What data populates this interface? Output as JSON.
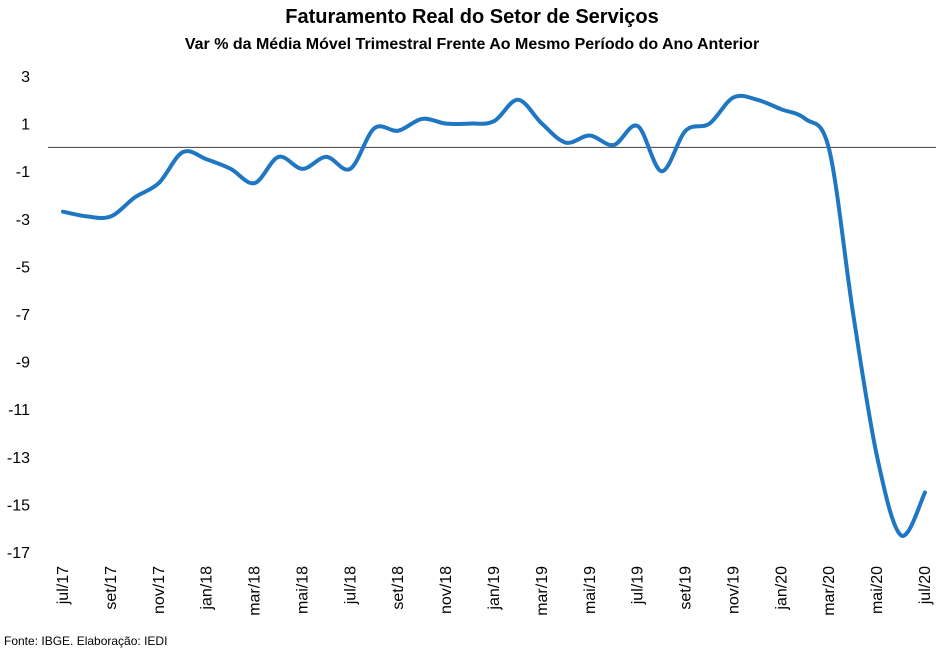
{
  "chart_data": {
    "type": "line",
    "title": "Faturamento Real do Setor de Serviços",
    "subtitle": "Var % da Média Móvel Trimestral Frente Ao Mesmo Período do Ano Anterior",
    "source": "Fonte: IBGE. Elaboração: IEDI",
    "xlabel": "",
    "ylabel": "",
    "ylim": [
      -17,
      3
    ],
    "y_ticks": [
      "3",
      "1",
      "-1",
      "-3",
      "-5",
      "-7",
      "-9",
      "-11",
      "-13",
      "-15",
      "-17"
    ],
    "x_tick_labels": [
      "jul/17",
      "set/17",
      "nov/17",
      "jan/18",
      "mar/18",
      "mai/18",
      "jul/18",
      "set/18",
      "nov/18",
      "jan/19",
      "mar/19",
      "mai/19",
      "jul/19",
      "set/19",
      "nov/19",
      "jan/20",
      "mar/20",
      "mai/20",
      "jul/20"
    ],
    "categories": [
      "jul/17",
      "ago/17",
      "set/17",
      "out/17",
      "nov/17",
      "dez/17",
      "jan/18",
      "fev/18",
      "mar/18",
      "abr/18",
      "mai/18",
      "jun/18",
      "jul/18",
      "ago/18",
      "set/18",
      "out/18",
      "nov/18",
      "dez/18",
      "jan/19",
      "fev/19",
      "mar/19",
      "abr/19",
      "mai/19",
      "jun/19",
      "jul/19",
      "ago/19",
      "set/19",
      "out/19",
      "nov/19",
      "dez/19",
      "jan/20",
      "fev/20",
      "mar/20",
      "abr/20",
      "mai/20",
      "jun/20",
      "jul/20"
    ],
    "series": [
      {
        "color": "#1F77C4",
        "values": [
          -2.7,
          -2.9,
          -2.9,
          -2.1,
          -1.5,
          -0.2,
          -0.5,
          -0.9,
          -1.5,
          -0.4,
          -0.9,
          -0.4,
          -0.9,
          0.8,
          0.7,
          1.2,
          1.0,
          1.0,
          1.1,
          2.0,
          1.0,
          0.2,
          0.5,
          0.1,
          0.9,
          -1.0,
          0.7,
          1.0,
          2.1,
          2.0,
          1.6,
          1.2,
          -0.1,
          -7.0,
          -13.0,
          -16.3,
          -14.5
        ]
      }
    ],
    "zero_line": true,
    "grid": false,
    "legend": "none"
  }
}
